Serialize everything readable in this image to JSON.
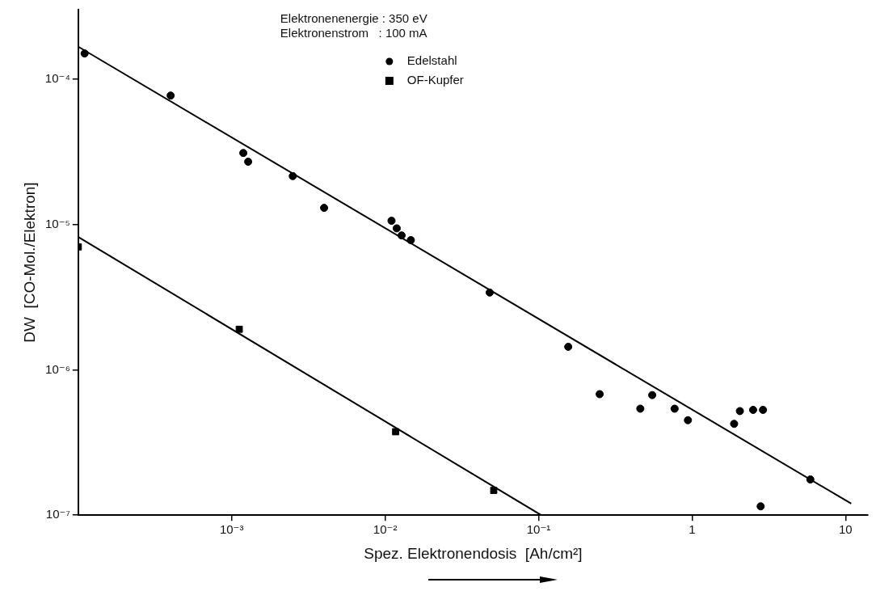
{
  "chart_data": {
    "type": "scatter",
    "xlabel": "Spez. Elektronendosis  [Ah/cm²]",
    "ylabel": "DW  [CO-Mol./Elektron]",
    "annotations": [
      "Elektronenenergie : 350 eV",
      "Elektronenstrom   : 100 mA"
    ],
    "log": "xy",
    "grid": false,
    "legend": "top",
    "xlim": [
      0.0001,
      14
    ],
    "ylim": [
      1e-07,
      0.0003
    ],
    "xticks": [
      {
        "value": 0.001,
        "label": "10⁻³"
      },
      {
        "value": 0.01,
        "label": "10⁻²"
      },
      {
        "value": 0.1,
        "label": "10⁻¹"
      },
      1,
      10
    ],
    "yticks": [
      {
        "value": 1e-07,
        "label": "10⁻⁷"
      },
      {
        "value": 1e-06,
        "label": "10⁻⁶"
      },
      {
        "value": 1e-05,
        "label": "10⁻⁵"
      },
      {
        "value": 0.0001,
        "label": "10⁻⁴"
      }
    ],
    "series": [
      {
        "name": "Edelstahl",
        "color": "#000000",
        "marker": "circle",
        "x": [
          0.00011,
          0.0004,
          0.00119,
          0.00128,
          0.0025,
          0.004,
          0.011,
          0.0119,
          0.0128,
          0.0147,
          0.048,
          0.156,
          0.25,
          0.46,
          0.55,
          0.77,
          0.94,
          1.88,
          2.05,
          2.5,
          2.9,
          2.8,
          5.9
        ],
        "values": [
          0.00015,
          7.7e-05,
          3.1e-05,
          2.7e-05,
          2.15e-05,
          1.3e-05,
          1.06e-05,
          9.4e-06,
          8.4e-06,
          7.8e-06,
          3.4e-06,
          1.44e-06,
          6.8e-07,
          5.4e-07,
          6.7e-07,
          5.4e-07,
          4.5e-07,
          4.25e-07,
          5.2e-07,
          5.3e-07,
          5.3e-07,
          1.15e-07,
          1.76e-07
        ]
      },
      {
        "name": "OF-Kupfer",
        "color": "#000000",
        "marker": "square",
        "x": [
          0.0001,
          0.00112,
          0.0117,
          0.051
        ],
        "values": [
          7e-06,
          1.9e-06,
          3.75e-07,
          1.48e-07
        ]
      },
      {
        "type": "line",
        "color": "#000000",
        "marker": "none",
        "line_style": "solid",
        "x": [
          0.0001,
          10.9
        ],
        "values": [
          0.000167,
          1.2e-07
        ]
      },
      {
        "type": "line",
        "color": "#000000",
        "marker": "none",
        "line_style": "solid",
        "x": [
          0.0001,
          0.104
        ],
        "values": [
          8.2e-06,
          1e-07
        ]
      }
    ]
  }
}
